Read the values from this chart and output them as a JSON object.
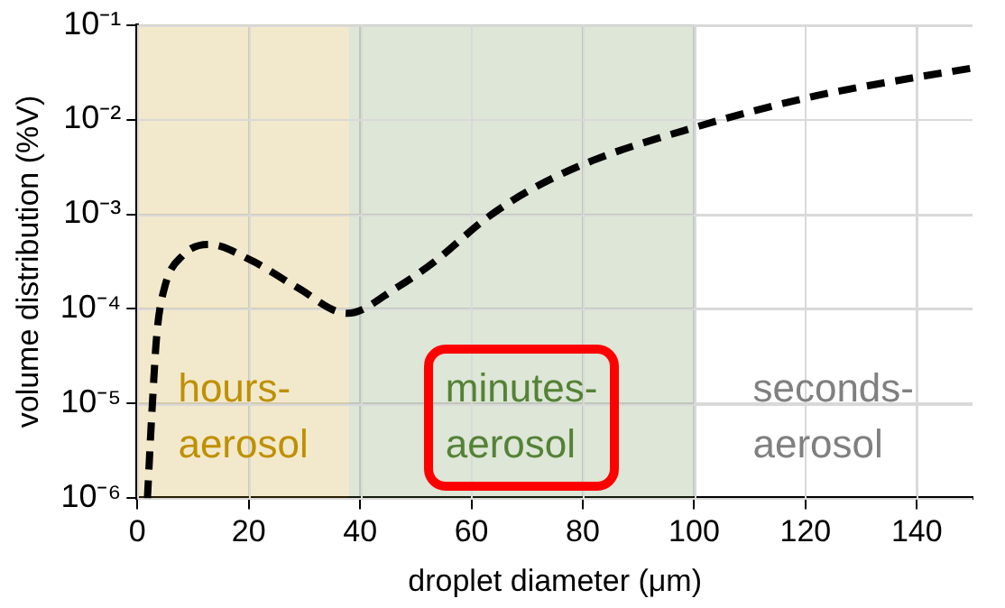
{
  "chart_data": {
    "type": "line",
    "xlabel": "droplet diameter (μm)",
    "ylabel": "volume distribution (%V)",
    "x": [
      1.8,
      2.6,
      3.5,
      4.9,
      8.2,
      12.8,
      20.7,
      28.6,
      37.7,
      46.7,
      53.5,
      62.6,
      70.5,
      81.8,
      99.9,
      120.3,
      138.4,
      150
    ],
    "series": [
      {
        "color": "#000000",
        "values": [
          1e-06,
          8e-06,
          5.5e-05,
          0.00017,
          0.00037,
          0.00048,
          0.00032,
          0.00017,
          9e-05,
          0.00017,
          0.00032,
          0.0009,
          0.0018,
          0.0037,
          0.0082,
          0.017,
          0.027,
          0.035
        ]
      }
    ],
    "xlim": [
      0,
      150
    ],
    "xticks": [
      0,
      20,
      40,
      60,
      80,
      100,
      120,
      140
    ],
    "ylim": [
      1e-06,
      0.1
    ],
    "yticks": [
      {
        "value": 1e-06,
        "label": "10⁻⁶"
      },
      {
        "value": 1e-05,
        "label": "10⁻⁵"
      },
      {
        "value": 0.0001,
        "label": "10⁻⁴"
      },
      {
        "value": 0.001,
        "label": "10⁻³"
      },
      {
        "value": 0.01,
        "label": "10⁻²"
      },
      {
        "value": 0.1,
        "label": "10⁻¹"
      }
    ],
    "log": "y",
    "grid": true,
    "legend": false,
    "marker": "none",
    "line_style": "dashed",
    "annotations": [
      "seconds-\naerosol"
    ],
    "bands": [
      {
        "axis": "x",
        "from": 0,
        "to": 38,
        "label": "hours-\naerosol",
        "color": "#bf9000"
      },
      {
        "axis": "x",
        "from": 38,
        "to": 100,
        "label": "minutes-\naerosol",
        "color": "#548235"
      }
    ]
  }
}
